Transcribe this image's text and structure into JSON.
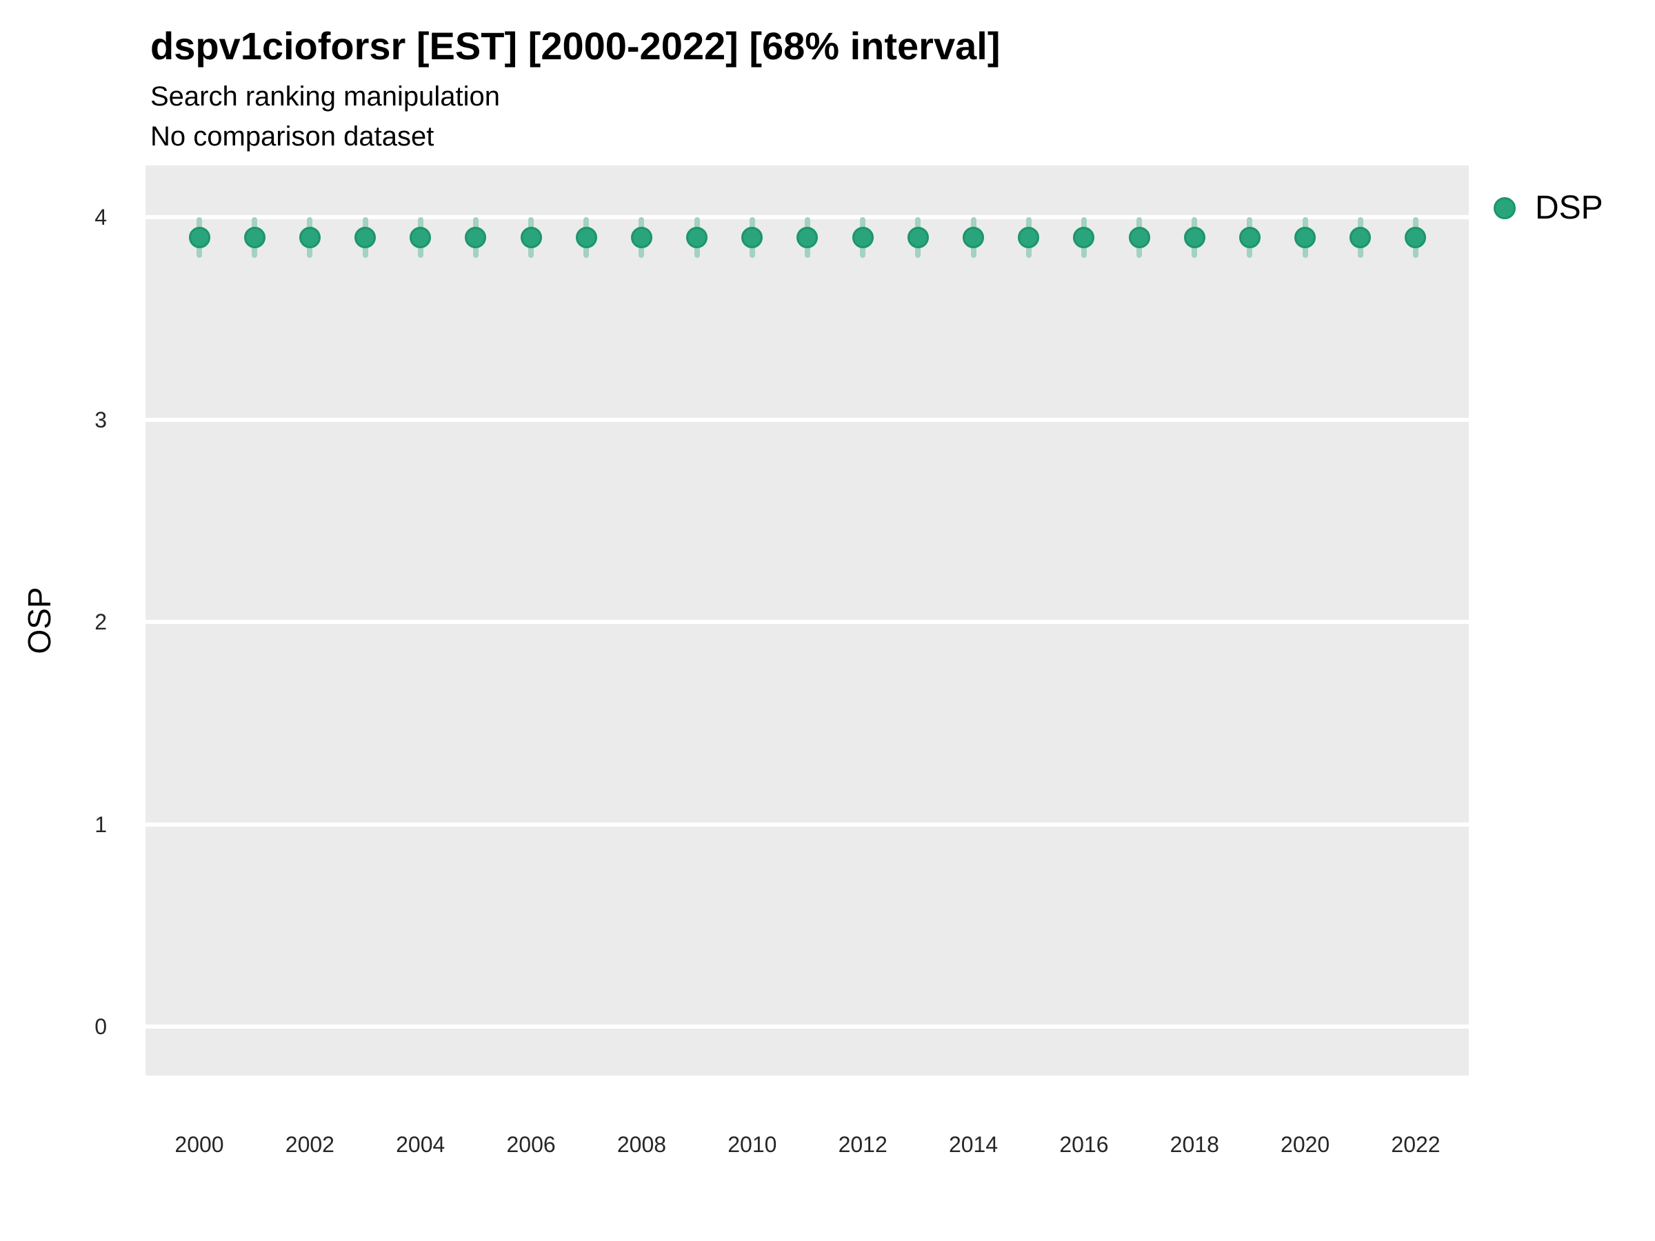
{
  "header": {
    "title": "dspv1cioforsr [EST] [2000-2022] [68% interval]",
    "subtitle_line1": "Search ranking manipulation",
    "subtitle_line2": "No comparison dataset"
  },
  "legend": {
    "position": "right",
    "items": [
      {
        "label": "DSP",
        "marker": "circle",
        "color": "#2aa47c"
      }
    ]
  },
  "axes": {
    "y_label": "OSP",
    "x_label": ""
  },
  "colors": {
    "panel_bg": "#ebebeb",
    "grid": "#ffffff",
    "tick_text": "#262626",
    "point_fill": "#2aa47c",
    "point_stroke": "#1b9668",
    "interval": "#a3d2bf"
  },
  "chart_data": {
    "type": "scatter",
    "title": "dspv1cioforsr [EST] [2000-2022] [68% interval]",
    "subtitle": [
      "Search ranking manipulation",
      "No comparison dataset"
    ],
    "xlabel": "",
    "ylabel": "OSP",
    "interval": "68%",
    "grid": "major horizontal white gridlines on gray panel",
    "legend_position": "right",
    "ylim": [
      -0.25,
      4.25
    ],
    "y_ticks": [
      0,
      1,
      2,
      3,
      4
    ],
    "x_ticks": [
      2000,
      2002,
      2004,
      2006,
      2008,
      2010,
      2012,
      2014,
      2016,
      2018,
      2020,
      2022
    ],
    "x": [
      2000,
      2001,
      2002,
      2003,
      2004,
      2005,
      2006,
      2007,
      2008,
      2009,
      2010,
      2011,
      2012,
      2013,
      2014,
      2015,
      2016,
      2017,
      2018,
      2019,
      2020,
      2021,
      2022
    ],
    "series": [
      {
        "name": "DSP",
        "estimates": [
          3.9,
          3.9,
          3.9,
          3.9,
          3.9,
          3.9,
          3.9,
          3.9,
          3.9,
          3.9,
          3.9,
          3.9,
          3.9,
          3.9,
          3.9,
          3.9,
          3.9,
          3.9,
          3.9,
          3.9,
          3.9,
          3.9,
          3.9
        ],
        "lower_68": [
          3.8,
          3.8,
          3.8,
          3.8,
          3.8,
          3.8,
          3.8,
          3.8,
          3.8,
          3.8,
          3.8,
          3.8,
          3.8,
          3.8,
          3.8,
          3.8,
          3.8,
          3.8,
          3.8,
          3.8,
          3.8,
          3.8,
          3.8
        ],
        "upper_68": [
          4.0,
          4.0,
          4.0,
          4.0,
          4.0,
          4.0,
          4.0,
          4.0,
          4.0,
          4.0,
          4.0,
          4.0,
          4.0,
          4.0,
          4.0,
          4.0,
          4.0,
          4.0,
          4.0,
          4.0,
          4.0,
          4.0,
          4.0
        ]
      }
    ]
  }
}
